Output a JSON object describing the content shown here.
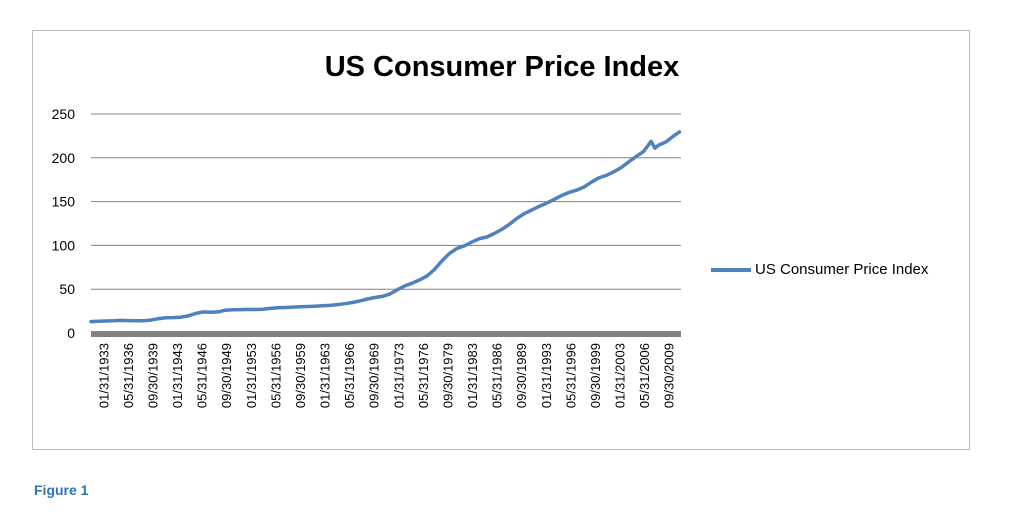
{
  "figure_caption": "Figure 1",
  "chart_data": {
    "type": "line",
    "title": "US Consumer Price Index",
    "xlabel": "",
    "ylabel": "",
    "ylim": [
      0,
      250
    ],
    "yticks": [
      0,
      50,
      100,
      150,
      200,
      250
    ],
    "grid": true,
    "legend": "right",
    "line_color": "#4f81bd",
    "x_tick_labels": [
      "01/31/1933",
      "05/31/1936",
      "09/30/1939",
      "01/31/1943",
      "05/31/1946",
      "09/30/1949",
      "01/31/1953",
      "05/31/1956",
      "09/30/1959",
      "01/31/1963",
      "05/31/1966",
      "09/30/1969",
      "01/31/1973",
      "05/31/1976",
      "09/30/1979",
      "01/31/1983",
      "05/31/1986",
      "09/30/1989",
      "01/31/1993",
      "05/31/1996",
      "09/30/1999",
      "01/31/2003",
      "05/31/2006",
      "09/30/2009"
    ],
    "series": [
      {
        "name": "US Consumer Price Index",
        "x": [
          1933,
          1934,
          1935,
          1936,
          1937,
          1938,
          1939,
          1940,
          1941,
          1942,
          1943,
          1944,
          1945,
          1946,
          1947,
          1948,
          1949,
          1950,
          1951,
          1952,
          1953,
          1954,
          1955,
          1956,
          1957,
          1958,
          1959,
          1960,
          1961,
          1962,
          1963,
          1964,
          1965,
          1966,
          1967,
          1968,
          1969,
          1970,
          1971,
          1972,
          1973,
          1974,
          1975,
          1976,
          1977,
          1978,
          1979,
          1980,
          1981,
          1982,
          1983,
          1984,
          1985,
          1986,
          1987,
          1988,
          1989,
          1990,
          1991,
          1992,
          1993,
          1994,
          1995,
          1996,
          1997,
          1998,
          1999,
          2000,
          2001,
          2002,
          2003,
          2004,
          2005,
          2006,
          2007,
          2008,
          2008.5,
          2009,
          2010,
          2011,
          2011.8
        ],
        "values": [
          13,
          13.4,
          13.7,
          13.9,
          14.4,
          14.1,
          13.9,
          14,
          14.7,
          16.3,
          17.3,
          17.6,
          18,
          19.5,
          22.3,
          24.1,
          23.8,
          24.1,
          26,
          26.5,
          26.7,
          26.9,
          26.8,
          27.2,
          28.1,
          28.9,
          29.1,
          29.6,
          29.9,
          30.2,
          30.6,
          31,
          31.5,
          32.4,
          33.4,
          34.8,
          36.7,
          38.8,
          40.5,
          41.8,
          44.4,
          49.3,
          53.8,
          56.9,
          60.6,
          65.2,
          72.6,
          82.4,
          90.9,
          96.5,
          99.6,
          103.9,
          107.6,
          109.6,
          113.6,
          118.3,
          124,
          130.7,
          136.2,
          140.3,
          144.5,
          148.2,
          152.4,
          156.9,
          160.5,
          163,
          166.6,
          172.2,
          177.1,
          179.9,
          184,
          188.9,
          195.3,
          201.6,
          207.3,
          218.8,
          211,
          214.5,
          218.1,
          224.9,
          229.6
        ]
      }
    ]
  }
}
